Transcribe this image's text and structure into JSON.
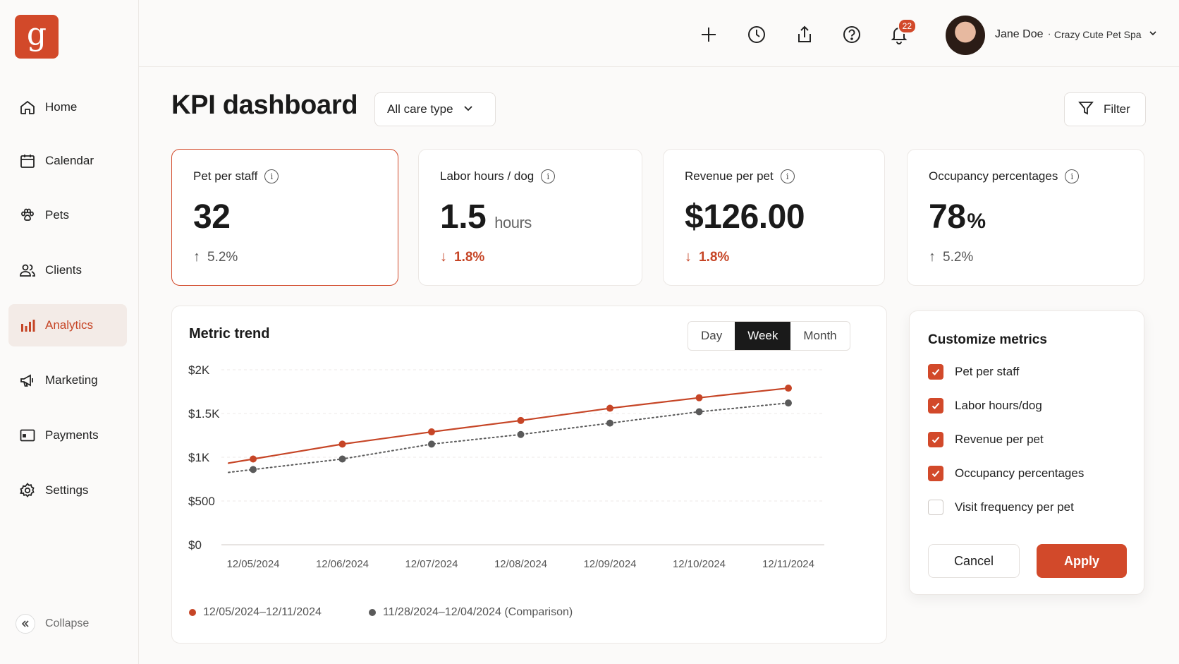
{
  "app": {
    "logo_letter": "g"
  },
  "sidebar": {
    "items": [
      {
        "label": "Home",
        "icon": "home-icon"
      },
      {
        "label": "Calendar",
        "icon": "calendar-icon"
      },
      {
        "label": "Pets",
        "icon": "paw-icon"
      },
      {
        "label": "Clients",
        "icon": "users-icon"
      },
      {
        "label": "Analytics",
        "icon": "bar-chart-icon",
        "active": true
      },
      {
        "label": "Marketing",
        "icon": "megaphone-icon"
      },
      {
        "label": "Payments",
        "icon": "wallet-icon"
      },
      {
        "label": "Settings",
        "icon": "gear-icon"
      }
    ],
    "collapse_label": "Collapse"
  },
  "topbar": {
    "notification_count": "22",
    "user_name": "Jane Doe",
    "separator": "·",
    "org_name": "Crazy Cute Pet Spa"
  },
  "header": {
    "title": "KPI dashboard",
    "care_type": "All care type",
    "filter_label": "Filter"
  },
  "kpis": [
    {
      "label": "Pet per staff",
      "value": "32",
      "unit": "",
      "delta": "5.2%",
      "direction": "up",
      "selected": true
    },
    {
      "label": "Labor hours / dog",
      "value": "1.5",
      "unit": "hours",
      "delta": "1.8%",
      "direction": "down"
    },
    {
      "label": "Revenue per pet",
      "value": "$126.00",
      "unit": "",
      "delta": "1.8%",
      "direction": "down"
    },
    {
      "label": "Occupancy percentages",
      "value": "78",
      "unit": "%",
      "delta": "5.2%",
      "direction": "up"
    }
  ],
  "trend": {
    "title": "Metric trend",
    "ranges": [
      "Day",
      "Week",
      "Month"
    ],
    "selected_range": "Week",
    "legend": [
      "12/05/2024–12/11/2024",
      "11/28/2024–12/04/2024 (Comparison)"
    ]
  },
  "chart_data": {
    "type": "line",
    "x": [
      "12/05/2024",
      "12/06/2024",
      "12/07/2024",
      "12/08/2024",
      "12/09/2024",
      "12/10/2024",
      "12/11/2024"
    ],
    "y_ticks": [
      "$2K",
      "$1.5K",
      "$1K",
      "$500",
      "$0"
    ],
    "ylim": [
      0,
      2000
    ],
    "grid": true,
    "legend_position": "bottom-left",
    "series": [
      {
        "name": "12/05/2024–12/11/2024",
        "values": [
          980,
          1150,
          1290,
          1420,
          1560,
          1680,
          1790
        ],
        "color": "#c64526",
        "style": "solid"
      },
      {
        "name": "11/28/2024–12/04/2024 (Comparison)",
        "values": [
          860,
          980,
          1150,
          1260,
          1390,
          1520,
          1620
        ],
        "color": "#5a5a5a",
        "style": "dotted"
      }
    ]
  },
  "customize": {
    "title": "Customize metrics",
    "options": [
      {
        "label": "Pet per staff",
        "checked": true
      },
      {
        "label": "Labor hours/dog",
        "checked": true
      },
      {
        "label": "Revenue per pet",
        "checked": true
      },
      {
        "label": "Occupancy percentages",
        "checked": true
      },
      {
        "label": "Visit frequency per pet",
        "checked": false
      }
    ],
    "cancel_label": "Cancel",
    "apply_label": "Apply"
  },
  "colors": {
    "accent": "#d2492a",
    "accent_text": "#c64526",
    "dark": "#1a1a1a",
    "comparison": "#5a5a5a"
  }
}
